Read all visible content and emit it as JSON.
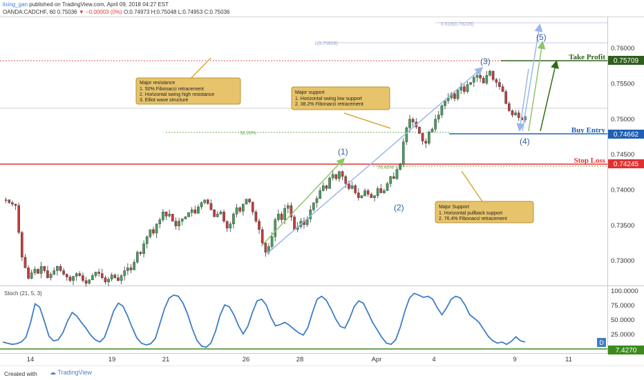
{
  "header": {
    "user": "lixing_gan",
    "published": "published on TradingView.com, April 09, 2018 04:27 EST",
    "symbol": "OANDA:CADCHF, 60",
    "last": "0.75036",
    "change": "−0.00003 (0%)",
    "o": "O:0.74973",
    "h": "H:0.75048",
    "l": "L:0.74953",
    "c": "C:0.75036"
  },
  "annotations": {
    "resistance": {
      "title": "Major resistance",
      "lines": [
        "1. 50% Fibonacci retracement",
        "2. Horizontal swing high resistance",
        "3. Elliot wave structure"
      ]
    },
    "support1": {
      "title": "Major support",
      "lines": [
        "1. Horizontal swing low support",
        "2. 38.2% Fibonacci retracement"
      ]
    },
    "support2": {
      "title": "Major Support",
      "lines": [
        "1. Horizontal pullback support",
        "2. 76.4% Fibonacci retracement"
      ]
    }
  },
  "levels": {
    "take_profit": {
      "label": "Take Profit",
      "price": "0.75709",
      "color": "#3b5f1c"
    },
    "buy_entry": {
      "label": "Buy Entry",
      "price": "0.74662",
      "color": "#1f5fb4"
    },
    "stop_loss": {
      "label": "Stop Loss",
      "price": "0.74245",
      "color": "#e03131"
    }
  },
  "fib_labels": {
    "f382": "38.20%",
    "f764": "76.40%",
    "f1": "1(0.75959)",
    "f618": "0.618(0.76228)"
  },
  "waves": [
    "(1)",
    "(2)",
    "(3)",
    "(4)",
    "(5)"
  ],
  "stoch": {
    "title": "Stoch (21, 5, 3)",
    "badge": "D",
    "value": "7.4270",
    "ticks": [
      "100.0000",
      "75.0000",
      "50.0000",
      "25.0000"
    ]
  },
  "footer": {
    "created": "Created with",
    "brand": "TradingView"
  },
  "chart_data": {
    "type": "line",
    "title": "",
    "xlabel": "",
    "ylabel": "",
    "x_ticks": [
      "14",
      "19",
      "21",
      "26",
      "28",
      "Apr",
      "4",
      "9",
      "11"
    ],
    "y_ticks": [
      "0.76000",
      "0.75500",
      "0.75000",
      "0.74500",
      "0.74000",
      "0.73500",
      "0.73000"
    ],
    "ylim": [
      0.7265,
      0.7645
    ],
    "series": [
      {
        "values": [
          0.7385,
          0.7386,
          0.7382,
          0.738,
          0.7378,
          0.734,
          0.7305,
          0.729,
          0.7275,
          0.7283,
          0.7288,
          0.7282,
          0.7292,
          0.7286,
          0.7276,
          0.7281,
          0.7286,
          0.7292,
          0.7286,
          0.7281,
          0.7277,
          0.7272,
          0.7278,
          0.7282,
          0.7279,
          0.7272,
          0.7268,
          0.7273,
          0.7279,
          0.7284,
          0.7282,
          0.7276,
          0.727,
          0.7274,
          0.728,
          0.7276,
          0.7272,
          0.7279,
          0.7286,
          0.729,
          0.7287,
          0.7298,
          0.7312,
          0.731,
          0.7324,
          0.7334,
          0.7344,
          0.7339,
          0.7352,
          0.7358,
          0.7369,
          0.7363,
          0.7366,
          0.7356,
          0.7349,
          0.7356,
          0.7359,
          0.7362,
          0.7368,
          0.7372,
          0.7367,
          0.7376,
          0.7382,
          0.7386,
          0.7381,
          0.7372,
          0.7362,
          0.7366,
          0.7369,
          0.7356,
          0.7346,
          0.7352,
          0.7366,
          0.7375,
          0.737,
          0.738,
          0.7387,
          0.7383,
          0.7369,
          0.7356,
          0.7344,
          0.7325,
          0.7312,
          0.732,
          0.7334,
          0.7358,
          0.7366,
          0.7358,
          0.7374,
          0.7378,
          0.7362,
          0.7344,
          0.7348,
          0.7356,
          0.7351,
          0.7359,
          0.7372,
          0.7382,
          0.7388,
          0.7399,
          0.7406,
          0.7402,
          0.7417,
          0.7422,
          0.7416,
          0.7426,
          0.7419,
          0.7409,
          0.7402,
          0.7406,
          0.7396,
          0.7389,
          0.7392,
          0.7399,
          0.7394,
          0.7389,
          0.7392,
          0.7402,
          0.7396,
          0.7399,
          0.7409,
          0.7419,
          0.7416,
          0.7429,
          0.7436,
          0.7468,
          0.7488,
          0.75,
          0.7496,
          0.7489,
          0.748,
          0.7469,
          0.7466,
          0.7482,
          0.7486,
          0.75,
          0.7506,
          0.7519,
          0.7526,
          0.753,
          0.7536,
          0.7529,
          0.7541,
          0.7546,
          0.7539,
          0.7549,
          0.7552,
          0.7559,
          0.7562,
          0.7558,
          0.7551,
          0.7562,
          0.7568,
          0.7556,
          0.7552,
          0.7546,
          0.7539,
          0.7522,
          0.7512,
          0.7506,
          0.7509,
          0.7502,
          0.7499,
          0.7504
        ]
      }
    ],
    "stoch": {
      "ylim": [
        0,
        100
      ],
      "values": [
        12,
        10,
        8,
        9,
        12,
        20,
        45,
        78,
        72,
        48,
        22,
        14,
        16,
        28,
        48,
        63,
        57,
        46,
        36,
        24,
        16,
        12,
        20,
        42,
        66,
        79,
        74,
        57,
        37,
        19,
        10,
        7,
        9,
        18,
        44,
        70,
        88,
        93,
        91,
        79,
        60,
        35,
        15,
        5,
        3,
        10,
        30,
        58,
        76,
        73,
        59,
        40,
        26,
        39,
        63,
        83,
        86,
        76,
        55,
        40,
        42,
        46,
        41,
        34,
        28,
        24,
        37,
        63,
        86,
        91,
        84,
        69,
        52,
        39,
        36,
        52,
        73,
        83,
        79,
        63,
        46,
        33,
        20,
        10,
        8,
        16,
        38,
        66,
        88,
        96,
        93,
        89,
        91,
        86,
        71,
        59,
        71,
        86,
        91,
        88,
        76,
        59,
        53,
        46,
        34,
        22,
        14,
        10,
        12,
        8,
        13,
        21,
        14,
        12
      ]
    },
    "levels": {
      "take_profit": 0.75709,
      "buy_entry": 0.74662,
      "stop_loss": 0.74245,
      "fib_382": 0.7466,
      "fib_764": 0.7422,
      "fib_1": 0.75959,
      "fib_618": 0.76228
    },
    "waves": [
      {
        "label": "(1)",
        "x": 0.583,
        "y": 0.7435
      },
      {
        "label": "(2)",
        "x": 0.686,
        "y": 0.7365
      },
      {
        "label": "(3)",
        "x": 0.827,
        "y": 0.7573
      },
      {
        "label": "(4)",
        "x": 0.902,
        "y": 0.745
      },
      {
        "label": "(5)",
        "x": 0.925,
        "y": 0.7612
      }
    ]
  }
}
